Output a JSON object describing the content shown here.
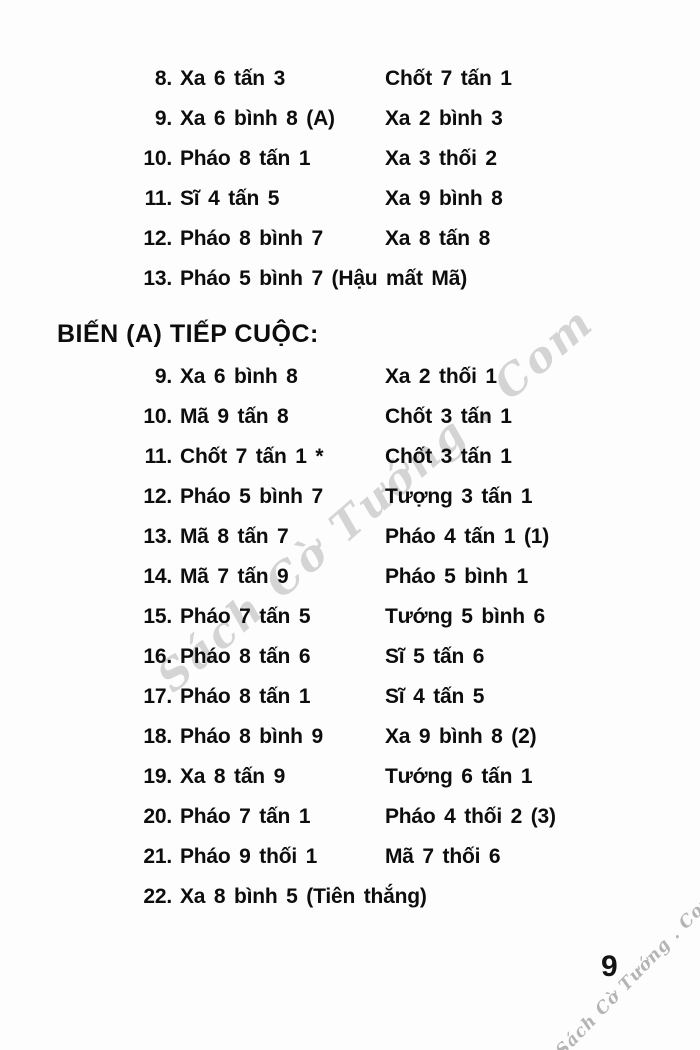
{
  "page": {
    "background": "#fdfdfd",
    "text_color": "#0d0d0d",
    "page_number": "9"
  },
  "watermark": {
    "text": "Sách Cờ Tướng . Com",
    "color": "#919191"
  },
  "heading": {
    "label": "BIẾN (A) TIẾP CUỘC:"
  },
  "main_line": {
    "rows": [
      {
        "num": "8.",
        "red": "Xa 6 tấn 3",
        "black": "Chốt 7 tấn 1"
      },
      {
        "num": "9.",
        "red": "Xa 6 bình 8 (A)",
        "black": "Xa 2 bình 3"
      },
      {
        "num": "10.",
        "red": "Pháo 8 tấn 1",
        "black": "Xa 3 thối 2"
      },
      {
        "num": "11.",
        "red": "Sĩ 4 tấn 5",
        "black": "Xa 9 bình 8"
      },
      {
        "num": "12.",
        "red": "Pháo 8 bình 7",
        "black": "Xa 8 tấn 8"
      },
      {
        "num": "13.",
        "red": "Pháo 5 bình 7 (Hậu mất Mã)",
        "black": ""
      }
    ]
  },
  "variation_a": {
    "rows": [
      {
        "num": "9.",
        "red": "Xa 6 bình 8",
        "black": "Xa 2 thối 1"
      },
      {
        "num": "10.",
        "red": "Mã 9 tấn 8",
        "black": "Chốt 3 tấn 1"
      },
      {
        "num": "11.",
        "red": "Chốt 7 tấn 1 *",
        "black": "Chốt 3 tấn 1"
      },
      {
        "num": "12.",
        "red": "Pháo 5 bình 7",
        "black": "Tượng 3 tấn 1"
      },
      {
        "num": "13.",
        "red": "Mã 8 tấn 7",
        "black": "Pháo 4 tấn 1 (1)"
      },
      {
        "num": "14.",
        "red": "Mã 7 tấn 9",
        "black": "Pháo 5 bình 1"
      },
      {
        "num": "15.",
        "red": "Pháo 7 tấn 5",
        "black": "Tướng 5 bình 6"
      },
      {
        "num": "16.",
        "red": "Pháo 8 tấn 6",
        "black": "Sĩ 5 tấn 6"
      },
      {
        "num": "17.",
        "red": "Pháo 8 tấn 1",
        "black": "Sĩ 4 tấn 5"
      },
      {
        "num": "18.",
        "red": "Pháo 8 bình 9",
        "black": "Xa 9 bình 8 (2)"
      },
      {
        "num": "19.",
        "red": "Xa 8 tấn 9",
        "black": "Tướng 6 tấn 1"
      },
      {
        "num": "20.",
        "red": "Pháo 7 tấn 1",
        "black": "Pháo 4 thối 2 (3)"
      },
      {
        "num": "21.",
        "red": "Pháo 9 thối 1",
        "black": "Mã 7 thối 6"
      },
      {
        "num": "22.",
        "red": "Xa 8 bình 5 (Tiên thắng)",
        "black": ""
      }
    ]
  }
}
